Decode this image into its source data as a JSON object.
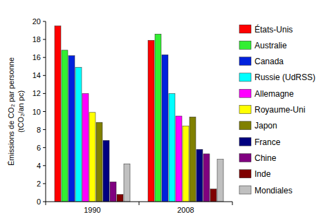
{
  "chart_data": {
    "type": "bar",
    "y_label": "Émissions de CO₂ par personne (tCO₂/an pc)",
    "categories": [
      "1990",
      "2008"
    ],
    "series": [
      {
        "name": "États-Unis",
        "color": "#ff0000",
        "values": [
          19.5,
          17.9
        ]
      },
      {
        "name": "Australie",
        "color": "#33ee33",
        "values": [
          16.8,
          18.6
        ]
      },
      {
        "name": "Canada",
        "color": "#0022dd",
        "values": [
          16.2,
          16.3
        ]
      },
      {
        "name": "Russie (UdRSS)",
        "color": "#00ffff",
        "values": [
          14.9,
          12.0
        ]
      },
      {
        "name": "Allemagne",
        "color": "#ff00ff",
        "values": [
          12.0,
          9.5
        ]
      },
      {
        "name": "Royaume-Uni",
        "color": "#ffff00",
        "values": [
          9.9,
          8.4
        ]
      },
      {
        "name": "Japon",
        "color": "#808000",
        "values": [
          8.8,
          9.4
        ]
      },
      {
        "name": "France",
        "color": "#000080",
        "values": [
          6.8,
          5.8
        ]
      },
      {
        "name": "Chine",
        "color": "#800080",
        "values": [
          2.2,
          5.3
        ]
      },
      {
        "name": "Inde",
        "color": "#800000",
        "values": [
          0.8,
          1.4
        ]
      },
      {
        "name": "Mondiales",
        "color": "#c0c0c0",
        "values": [
          4.2,
          4.7
        ]
      }
    ],
    "ylim": [
      0,
      20
    ],
    "yticks": [
      0,
      2,
      4,
      6,
      8,
      10,
      12,
      14,
      16,
      18,
      20
    ],
    "grid": false,
    "legend": "right"
  }
}
